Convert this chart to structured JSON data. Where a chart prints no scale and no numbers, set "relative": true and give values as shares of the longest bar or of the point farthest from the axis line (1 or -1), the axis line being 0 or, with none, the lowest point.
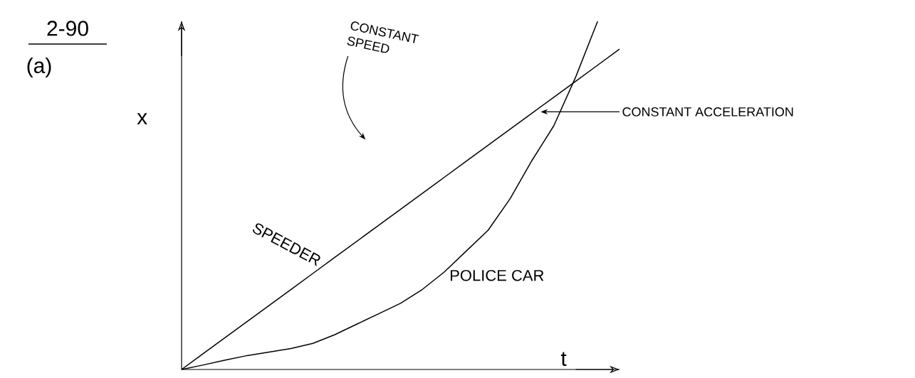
{
  "chart_data": {
    "type": "line",
    "title": "2-90",
    "subtitle": "(a)",
    "xlabel": "t",
    "ylabel": "x",
    "relative": true,
    "categories": [
      null,
      null,
      null,
      null,
      null,
      null,
      null,
      null,
      null,
      null,
      null,
      null,
      null,
      null,
      null,
      null,
      null,
      null,
      null,
      null,
      null
    ],
    "series": [
      {
        "name": "SPEEDER",
        "color": "#000000",
        "values": [
          0,
          0.046,
          0.092,
          0.138,
          0.184,
          0.23,
          0.276,
          0.322,
          0.368,
          0.414,
          0.46,
          0.506,
          0.552,
          0.598,
          0.644,
          0.69,
          0.736,
          0.782,
          0.828,
          0.874,
          0.92
        ]
      },
      {
        "name": "POLICE CAR",
        "color": "#000000",
        "values": [
          0,
          0.013,
          0.027,
          0.04,
          0.05,
          0.06,
          0.075,
          0.1,
          0.13,
          0.16,
          0.19,
          0.23,
          0.28,
          0.34,
          0.4,
          0.49,
          0.6,
          0.7,
          0.84,
          1.0,
          null
        ]
      }
    ],
    "annotations": [
      "CONSTANT SPEED",
      "CONSTANT ACCELERATION"
    ]
  }
}
